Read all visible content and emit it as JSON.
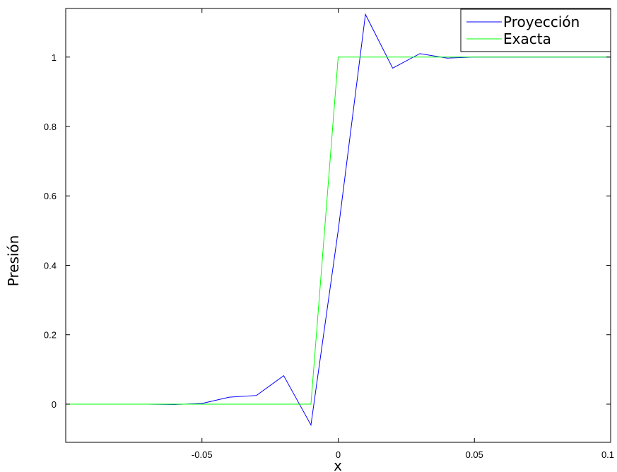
{
  "chart_data": {
    "type": "line",
    "title": "",
    "xlabel": "x",
    "ylabel": "Presión",
    "xlim": [
      -0.1,
      0.1
    ],
    "ylim": [
      -0.11,
      1.14
    ],
    "xticks": [
      -0.05,
      0,
      0.05,
      0.1
    ],
    "xtick_labels": [
      "-0.05",
      "0",
      "0.05",
      "0.1"
    ],
    "yticks": [
      0,
      0.2,
      0.4,
      0.6,
      0.8,
      1
    ],
    "ytick_labels": [
      "0",
      "0.2",
      "0.4",
      "0.6",
      "0.8",
      "1"
    ],
    "grid": false,
    "legend_position": "top-right",
    "series": [
      {
        "name": "Proyección",
        "color": "#0000ff",
        "x": [
          -0.1,
          -0.09,
          -0.08,
          -0.07,
          -0.06,
          -0.05,
          -0.04,
          -0.03,
          -0.02,
          -0.01,
          0.0,
          0.01,
          0.02,
          0.03,
          0.04,
          0.05,
          0.06,
          0.07,
          0.08,
          0.09,
          0.1
        ],
        "y": [
          0.0,
          0.0,
          0.0,
          0.0,
          -0.001,
          0.002,
          0.02,
          0.025,
          0.082,
          -0.06,
          0.5,
          1.123,
          0.968,
          1.01,
          0.997,
          1.0,
          1.0,
          1.0,
          1.0,
          1.0,
          1.0
        ]
      },
      {
        "name": "Exacta",
        "color": "#00ff00",
        "x": [
          -0.1,
          -0.01,
          0.0,
          0.1
        ],
        "y": [
          0.0,
          0.0,
          1.0,
          1.0
        ]
      }
    ]
  }
}
